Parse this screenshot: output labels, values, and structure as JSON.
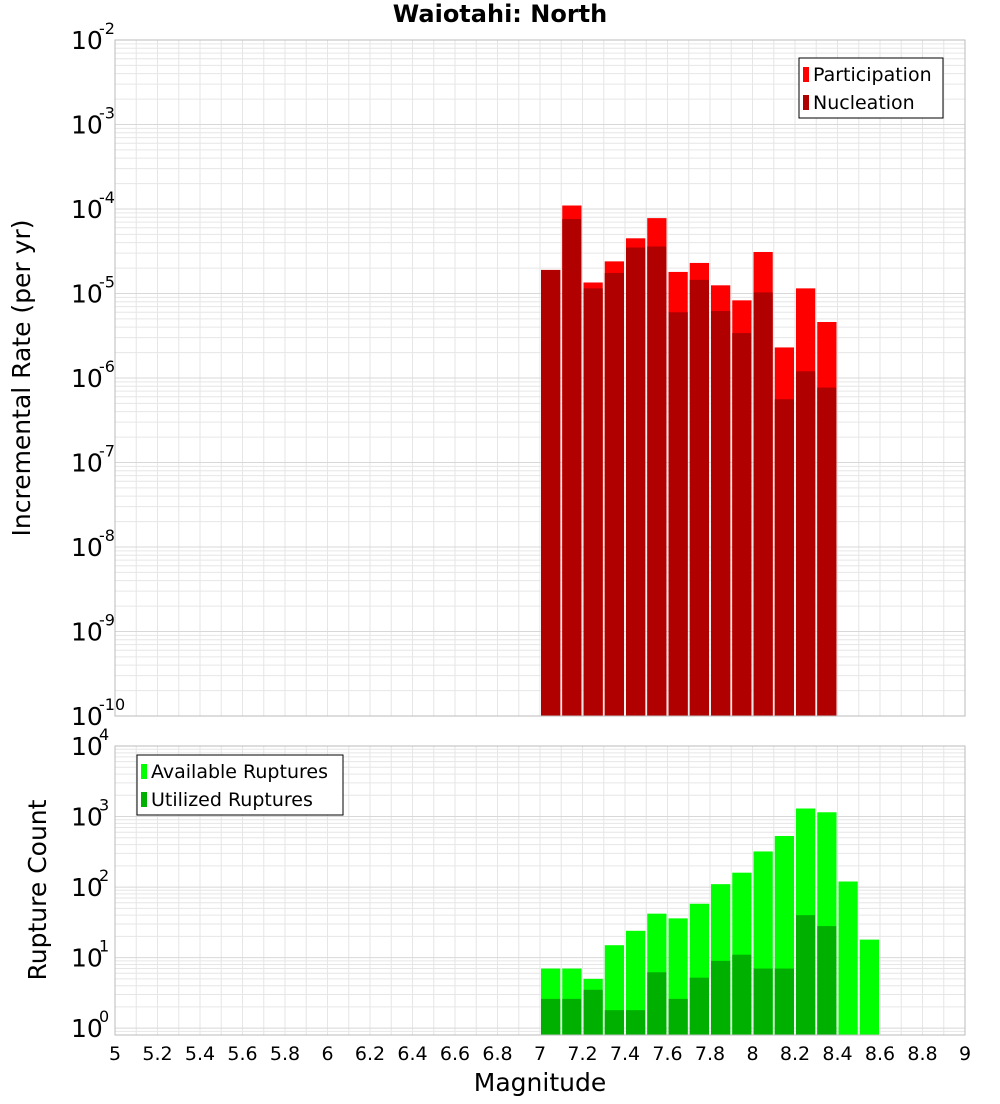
{
  "title": "Waiotahi: North",
  "xlabel": "Magnitude",
  "colors": {
    "participation": "#ff0000",
    "nucleation": "#b00000",
    "available": "#00ff00",
    "utilized": "#00b000",
    "grid": "#e6e6e6",
    "frame": "#bbbbbb"
  },
  "chart_data": [
    {
      "type": "bar",
      "panel": "top",
      "ylabel": "Incremental Rate (per yr)",
      "yscale": "log",
      "ylim": [
        1e-10,
        0.01
      ],
      "xlim": [
        5,
        9
      ],
      "bin_width": 0.1,
      "y_ticks": [
        {
          "base": "10",
          "exp": "-10",
          "value": 1e-10
        },
        {
          "base": "10",
          "exp": "-9",
          "value": 1e-09
        },
        {
          "base": "10",
          "exp": "-8",
          "value": 1e-08
        },
        {
          "base": "10",
          "exp": "-7",
          "value": 1e-07
        },
        {
          "base": "10",
          "exp": "-6",
          "value": 1e-06
        },
        {
          "base": "10",
          "exp": "-5",
          "value": 1e-05
        },
        {
          "base": "10",
          "exp": "-4",
          "value": 0.0001
        },
        {
          "base": "10",
          "exp": "-3",
          "value": 0.001
        },
        {
          "base": "10",
          "exp": "-2",
          "value": 0.01
        }
      ],
      "legend": [
        "Participation",
        "Nucleation"
      ],
      "legend_position": "top-right",
      "x": [
        7.05,
        7.15,
        7.25,
        7.35,
        7.45,
        7.55,
        7.65,
        7.75,
        7.85,
        7.95,
        8.05,
        8.15,
        8.25,
        8.35
      ],
      "series": [
        {
          "name": "Participation",
          "values": [
            1.9e-05,
            0.00011,
            1.35e-05,
            2.4e-05,
            4.5e-05,
            7.8e-05,
            1.8e-05,
            2.3e-05,
            1.25e-05,
            8.3e-06,
            3.1e-05,
            2.3e-06,
            1.15e-05,
            4.6e-06
          ]
        },
        {
          "name": "Nucleation",
          "values": [
            1.9e-05,
            7.6e-05,
            1.15e-05,
            1.75e-05,
            3.5e-05,
            3.6e-05,
            6e-06,
            1.45e-05,
            6.2e-06,
            3.4e-06,
            1.03e-05,
            5.6e-07,
            1.2e-06,
            7.7e-07
          ]
        }
      ],
      "grid": true
    },
    {
      "type": "bar",
      "panel": "bottom",
      "ylabel": "Rupture Count",
      "yscale": "log",
      "ylim": [
        0.8,
        10000.0
      ],
      "xlim": [
        5,
        9
      ],
      "bin_width": 0.1,
      "y_ticks": [
        {
          "base": "10",
          "exp": "0",
          "value": 1
        },
        {
          "base": "10",
          "exp": "1",
          "value": 10
        },
        {
          "base": "10",
          "exp": "2",
          "value": 100
        },
        {
          "base": "10",
          "exp": "3",
          "value": 1000
        },
        {
          "base": "10",
          "exp": "4",
          "value": 10000
        }
      ],
      "x_ticks": [
        "5",
        "5.2",
        "5.4",
        "5.6",
        "5.8",
        "6",
        "6.2",
        "6.4",
        "6.6",
        "6.8",
        "7",
        "7.2",
        "7.4",
        "7.6",
        "7.8",
        "8",
        "8.2",
        "8.4",
        "8.6",
        "8.8",
        "9"
      ],
      "legend": [
        "Available Ruptures",
        "Utilized Ruptures"
      ],
      "legend_position": "top-left",
      "x": [
        7.05,
        7.15,
        7.25,
        7.35,
        7.45,
        7.55,
        7.65,
        7.75,
        7.85,
        7.95,
        8.05,
        8.15,
        8.25,
        8.35,
        8.45,
        8.55
      ],
      "series": [
        {
          "name": "Available Ruptures",
          "values": [
            7,
            7,
            5,
            15,
            24,
            42,
            36,
            58,
            110,
            160,
            320,
            530,
            1300,
            1150,
            120,
            18
          ]
        },
        {
          "name": "Utilized Ruptures",
          "values": [
            2.6,
            2.6,
            3.5,
            1.8,
            1.8,
            6.2,
            2.6,
            5.2,
            9,
            11,
            7,
            7,
            40,
            28,
            0,
            0
          ]
        }
      ],
      "grid": true
    }
  ]
}
